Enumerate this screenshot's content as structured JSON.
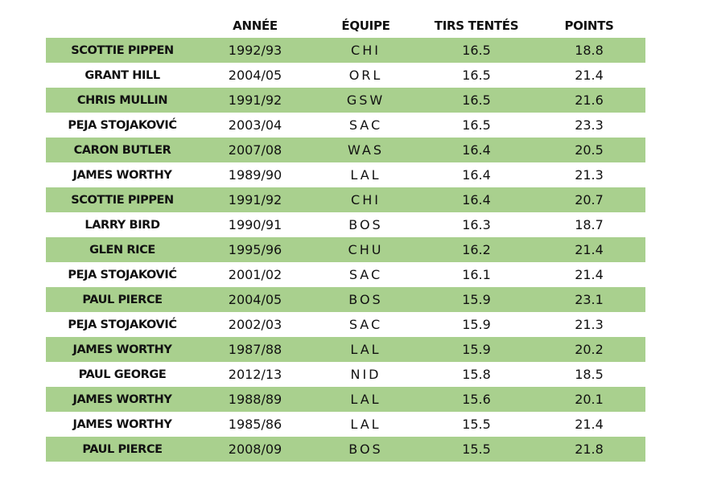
{
  "headers": [
    "",
    "ANNÉE",
    "ÉQUIPE",
    "TIRS TENTÉS",
    "POINTS"
  ],
  "rows": [
    {
      "name": "SCOTTIE PIPPEN",
      "year": "1992/93",
      "team": "CHI",
      "fga": "16.5",
      "pts": "18.8"
    },
    {
      "name": "GRANT HILL",
      "year": "2004/05",
      "team": "ORL",
      "fga": "16.5",
      "pts": "21.4"
    },
    {
      "name": "CHRIS MULLIN",
      "year": "1991/92",
      "team": "GSW",
      "fga": "16.5",
      "pts": "21.6"
    },
    {
      "name": "PEJA STOJAKOVIĆ",
      "year": "2003/04",
      "team": "SAC",
      "fga": "16.5",
      "pts": "23.3"
    },
    {
      "name": "CARON BUTLER",
      "year": "2007/08",
      "team": "WAS",
      "fga": "16.4",
      "pts": "20.5"
    },
    {
      "name": "JAMES WORTHY",
      "year": "1989/90",
      "team": "LAL",
      "fga": "16.4",
      "pts": "21.3"
    },
    {
      "name": "SCOTTIE PIPPEN",
      "year": "1991/92",
      "team": "CHI",
      "fga": "16.4",
      "pts": "20.7"
    },
    {
      "name": "LARRY BIRD",
      "year": "1990/91",
      "team": "BOS",
      "fga": "16.3",
      "pts": "18.7"
    },
    {
      "name": "GLEN RICE",
      "year": "1995/96",
      "team": "CHU",
      "fga": "16.2",
      "pts": "21.4"
    },
    {
      "name": "PEJA STOJAKOVIĆ",
      "year": "2001/02",
      "team": "SAC",
      "fga": "16.1",
      "pts": "21.4"
    },
    {
      "name": "PAUL PIERCE",
      "year": "2004/05",
      "team": "BOS",
      "fga": "15.9",
      "pts": "23.1"
    },
    {
      "name": "PEJA STOJAKOVIĆ",
      "year": "2002/03",
      "team": "SAC",
      "fga": "15.9",
      "pts": "21.3"
    },
    {
      "name": "JAMES WORTHY",
      "year": "1987/88",
      "team": "LAL",
      "fga": "15.9",
      "pts": "20.2"
    },
    {
      "name": "PAUL GEORGE",
      "year": "2012/13",
      "team": "NID",
      "fga": "15.8",
      "pts": "18.5"
    },
    {
      "name": "JAMES WORTHY",
      "year": "1988/89",
      "team": "LAL",
      "fga": "15.6",
      "pts": "20.1"
    },
    {
      "name": "JAMES WORTHY",
      "year": "1985/86",
      "team": "LAL",
      "fga": "15.5",
      "pts": "21.4"
    },
    {
      "name": "PAUL PIERCE",
      "year": "2008/09",
      "team": "BOS",
      "fga": "15.5",
      "pts": "21.8"
    }
  ],
  "colors": {
    "band": "#a9d08e",
    "text": "#111111",
    "background": "#ffffff"
  }
}
